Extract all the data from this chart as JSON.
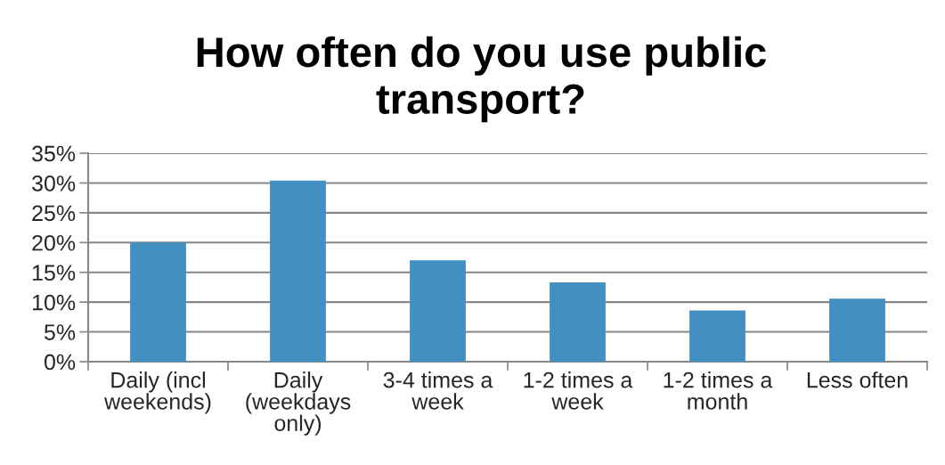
{
  "chart_data": {
    "type": "bar",
    "title": "How often do you use public\ntransport?",
    "categories": [
      "Daily (incl\nweekends)",
      "Daily\n(weekdays\nonly)",
      "3-4 times a\nweek",
      "1-2 times a\nweek",
      "1-2 times a\nmonth",
      "Less often"
    ],
    "values": [
      20,
      30.4,
      17,
      13.3,
      8.6,
      10.6
    ],
    "color": "#4190c1",
    "ylim": [
      0,
      35
    ],
    "yticks": [
      {
        "value": 0,
        "label": "0%"
      },
      {
        "value": 5,
        "label": "5%"
      },
      {
        "value": 10,
        "label": "10%"
      },
      {
        "value": 15,
        "label": "15%"
      },
      {
        "value": 20,
        "label": "20%"
      },
      {
        "value": 25,
        "label": "25%"
      },
      {
        "value": 30,
        "label": "30%"
      },
      {
        "value": 35,
        "label": "35%"
      }
    ],
    "grid": "y",
    "legend": false
  }
}
